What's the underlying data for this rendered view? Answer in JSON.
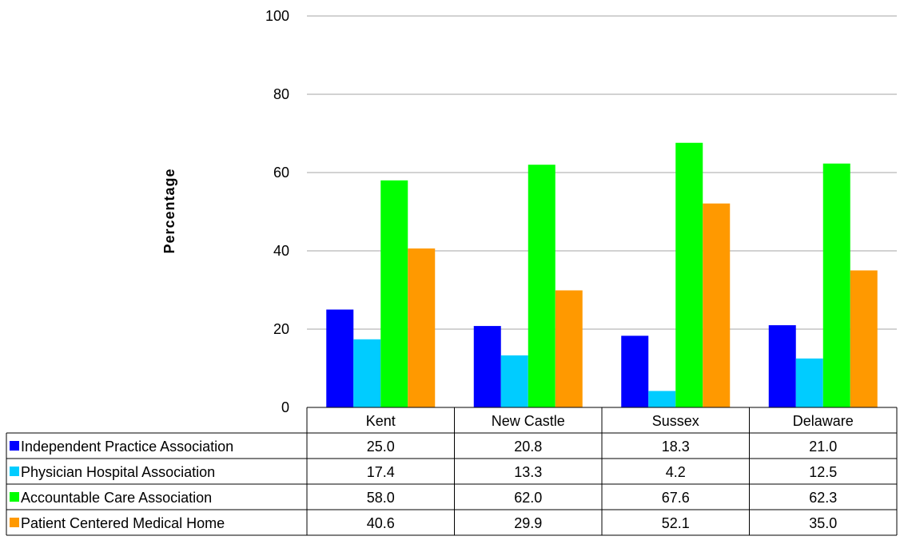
{
  "chart_data": {
    "type": "bar",
    "title": "",
    "xlabel": "",
    "ylabel": "Percentage",
    "ylim": [
      0,
      100
    ],
    "yticks": [
      0,
      20,
      40,
      60,
      80,
      100
    ],
    "grid": true,
    "legend": "data-table",
    "categories": [
      "Kent",
      "New Castle",
      "Sussex",
      "Delaware"
    ],
    "series": [
      {
        "name": "Independent Practice Association",
        "color": "#0000ff",
        "values": [
          25.0,
          20.8,
          18.3,
          21.0
        ],
        "labels": [
          "25.0",
          "20.8",
          "18.3",
          "21.0"
        ]
      },
      {
        "name": "Physician Hospital Association",
        "color": "#00ccff",
        "values": [
          17.4,
          13.3,
          4.2,
          12.5
        ],
        "labels": [
          "17.4",
          "13.3",
          "4.2",
          "12.5"
        ]
      },
      {
        "name": "Accountable Care Association",
        "color": "#00ff00",
        "values": [
          58.0,
          62.0,
          67.6,
          62.3
        ],
        "labels": [
          "58.0",
          "62.0",
          "67.6",
          "62.3"
        ]
      },
      {
        "name": "Patient Centered Medical Home",
        "color": "#ff9900",
        "values": [
          40.6,
          29.9,
          52.1,
          35.0
        ],
        "labels": [
          "40.6",
          "29.9",
          "52.1",
          "35.0"
        ]
      }
    ]
  }
}
